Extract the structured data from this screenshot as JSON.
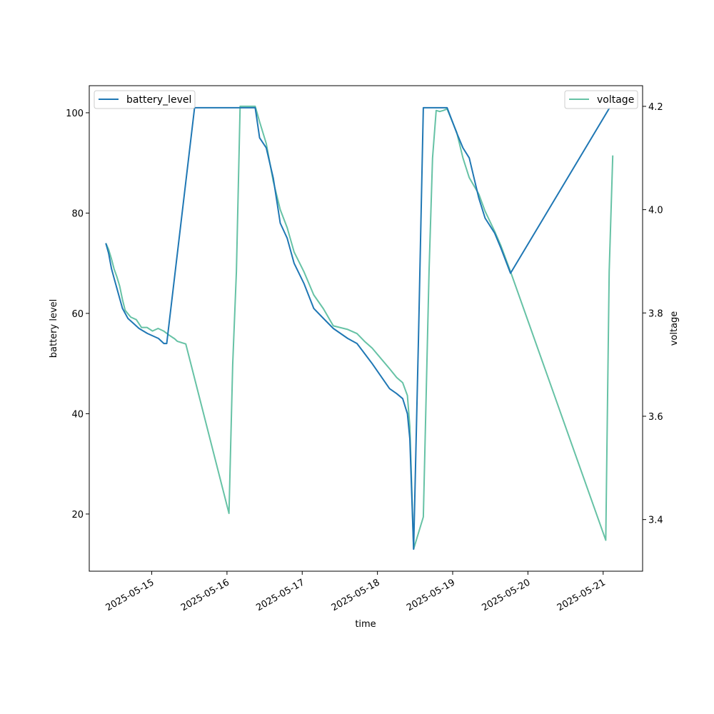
{
  "chart_data": {
    "type": "line",
    "xlabel": "time",
    "ylabel_left": "battery level",
    "ylabel_right": "voltage",
    "x_ticks": [
      "2025-05-15",
      "2025-05-16",
      "2025-05-17",
      "2025-05-18",
      "2025-05-19",
      "2025-05-20",
      "2025-05-21"
    ],
    "x_range": [
      "2025-05-14T04:04",
      "2025-05-21T12:35"
    ],
    "y_left_range": [
      8.6,
      105.4
    ],
    "y_left_ticks": [
      20,
      40,
      60,
      80,
      100
    ],
    "y_right_range": [
      3.3,
      4.24
    ],
    "y_right_ticks": [
      3.4,
      3.6,
      3.8,
      4.0,
      4.2
    ],
    "grid": false,
    "legend_left_position": "upper-left",
    "legend_right_position": "upper-right",
    "colors": {
      "battery_level": "#1f77b4",
      "voltage": "#66c2a5"
    },
    "series": [
      {
        "name": "battery_level",
        "axis": "left",
        "points": [
          [
            "2025-05-14T09:21",
            74
          ],
          [
            "2025-05-14T10:14",
            72
          ],
          [
            "2025-05-14T11:07",
            69
          ],
          [
            "2025-05-14T12:00",
            67
          ],
          [
            "2025-05-14T12:53",
            65
          ],
          [
            "2025-05-14T13:46",
            63
          ],
          [
            "2025-05-14T14:39",
            61
          ],
          [
            "2025-05-14T16:25",
            59
          ],
          [
            "2025-05-14T18:11",
            58
          ],
          [
            "2025-05-14T19:57",
            57
          ],
          [
            "2025-05-14T22:36",
            56
          ],
          [
            "2025-05-15T02:08",
            55
          ],
          [
            "2025-05-15T03:54",
            54
          ],
          [
            "2025-05-15T04:47",
            54
          ],
          [
            "2025-05-15T13:40",
            101
          ],
          [
            "2025-05-16T09:00",
            101
          ],
          [
            "2025-05-16T09:29",
            99
          ],
          [
            "2025-05-16T10:24",
            95
          ],
          [
            "2025-05-16T12:32",
            93
          ],
          [
            "2025-05-16T14:46",
            87
          ],
          [
            "2025-05-16T16:59",
            78
          ],
          [
            "2025-05-16T19:12",
            75
          ],
          [
            "2025-05-16T21:25",
            70
          ],
          [
            "2025-05-17T00:32",
            66
          ],
          [
            "2025-05-17T03:40",
            61
          ],
          [
            "2025-05-17T06:47",
            59
          ],
          [
            "2025-05-17T09:55",
            57
          ],
          [
            "2025-05-17T14:31",
            55
          ],
          [
            "2025-05-17T17:28",
            54
          ],
          [
            "2025-05-17T19:53",
            52
          ],
          [
            "2025-05-17T22:18",
            50
          ],
          [
            "2025-05-18T03:52",
            45
          ],
          [
            "2025-05-18T06:09",
            44
          ],
          [
            "2025-05-18T08:03",
            43
          ],
          [
            "2025-05-18T09:34",
            40
          ],
          [
            "2025-05-18T10:20",
            35
          ],
          [
            "2025-05-18T11:32",
            13
          ],
          [
            "2025-05-18T13:05",
            55
          ],
          [
            "2025-05-18T14:38",
            101
          ],
          [
            "2025-05-18T22:13",
            101
          ],
          [
            "2025-05-19T01:16",
            96
          ],
          [
            "2025-05-19T03:16",
            93
          ],
          [
            "2025-05-19T05:17",
            91
          ],
          [
            "2025-05-19T08:20",
            83
          ],
          [
            "2025-05-19T10:21",
            79
          ],
          [
            "2025-05-19T13:24",
            76
          ],
          [
            "2025-05-19T15:24",
            73
          ],
          [
            "2025-05-19T18:27",
            68
          ],
          [
            "2025-05-21T02:03",
            101
          ]
        ]
      },
      {
        "name": "voltage",
        "axis": "right",
        "points": [
          [
            "2025-05-14T09:21",
            3.935
          ],
          [
            "2025-05-14T10:14",
            3.923
          ],
          [
            "2025-05-14T11:07",
            3.905
          ],
          [
            "2025-05-14T12:00",
            3.885
          ],
          [
            "2025-05-14T12:53",
            3.87
          ],
          [
            "2025-05-14T13:46",
            3.852
          ],
          [
            "2025-05-14T14:39",
            3.826
          ],
          [
            "2025-05-14T15:32",
            3.805
          ],
          [
            "2025-05-14T17:18",
            3.792
          ],
          [
            "2025-05-14T19:04",
            3.787
          ],
          [
            "2025-05-14T20:43",
            3.772
          ],
          [
            "2025-05-14T22:29",
            3.772
          ],
          [
            "2025-05-15T00:15",
            3.765
          ],
          [
            "2025-05-15T02:01",
            3.77
          ],
          [
            "2025-05-15T03:47",
            3.765
          ],
          [
            "2025-05-15T05:33",
            3.757
          ],
          [
            "2025-05-15T07:19",
            3.75
          ],
          [
            "2025-05-15T08:12",
            3.745
          ],
          [
            "2025-05-15T10:51",
            3.74
          ],
          [
            "2025-05-16T00:38",
            3.412
          ],
          [
            "2025-05-16T01:49",
            3.7
          ],
          [
            "2025-05-16T03:00",
            3.88
          ],
          [
            "2025-05-16T04:11",
            4.2
          ],
          [
            "2025-05-16T05:22",
            4.2
          ],
          [
            "2025-05-16T07:50",
            4.2
          ],
          [
            "2025-05-16T09:00",
            4.2
          ],
          [
            "2025-05-16T09:29",
            4.19
          ],
          [
            "2025-05-16T10:24",
            4.17
          ],
          [
            "2025-05-16T12:32",
            4.128
          ],
          [
            "2025-05-16T14:46",
            4.055
          ],
          [
            "2025-05-16T16:59",
            4.0
          ],
          [
            "2025-05-16T19:12",
            3.965
          ],
          [
            "2025-05-16T21:25",
            3.918
          ],
          [
            "2025-05-17T00:32",
            3.88
          ],
          [
            "2025-05-17T03:40",
            3.835
          ],
          [
            "2025-05-17T06:47",
            3.808
          ],
          [
            "2025-05-17T09:55",
            3.775
          ],
          [
            "2025-05-17T14:31",
            3.768
          ],
          [
            "2025-05-17T17:28",
            3.76
          ],
          [
            "2025-05-17T19:53",
            3.745
          ],
          [
            "2025-05-17T22:18",
            3.732
          ],
          [
            "2025-05-18T03:52",
            3.692
          ],
          [
            "2025-05-18T06:09",
            3.675
          ],
          [
            "2025-05-18T08:03",
            3.665
          ],
          [
            "2025-05-18T09:34",
            3.64
          ],
          [
            "2025-05-18T10:20",
            3.58
          ],
          [
            "2025-05-18T11:32",
            3.343
          ],
          [
            "2025-05-18T14:38",
            3.405
          ],
          [
            "2025-05-18T16:27",
            3.88
          ],
          [
            "2025-05-18T17:35",
            4.1
          ],
          [
            "2025-05-18T18:44",
            4.192
          ],
          [
            "2025-05-18T19:52",
            4.19
          ],
          [
            "2025-05-18T21:01",
            4.192
          ],
          [
            "2025-05-18T22:13",
            4.195
          ],
          [
            "2025-05-19T01:16",
            4.15
          ],
          [
            "2025-05-19T03:16",
            4.1
          ],
          [
            "2025-05-19T05:17",
            4.062
          ],
          [
            "2025-05-19T08:20",
            4.03
          ],
          [
            "2025-05-19T10:21",
            3.997
          ],
          [
            "2025-05-19T13:24",
            3.958
          ],
          [
            "2025-05-19T15:24",
            3.93
          ],
          [
            "2025-05-19T18:27",
            3.88
          ],
          [
            "2025-05-21T00:50",
            3.36
          ],
          [
            "2025-05-21T01:55",
            3.88
          ],
          [
            "2025-05-21T03:04",
            4.105
          ]
        ]
      }
    ]
  }
}
